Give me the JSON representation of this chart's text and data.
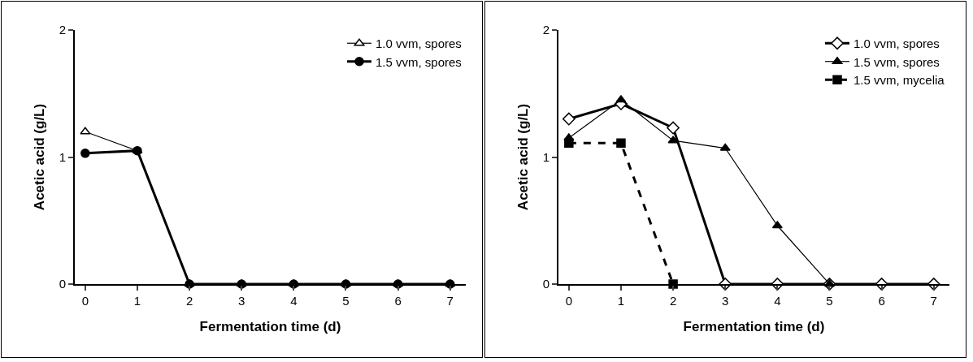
{
  "chart_data": [
    {
      "type": "line",
      "xlabel": "Fermentation time (d)",
      "ylabel": "Acetic acid (g/L)",
      "x": [
        0,
        1,
        2,
        3,
        4,
        5,
        6,
        7
      ],
      "xlim": [
        -0.2,
        7.3
      ],
      "xticks": [
        0,
        1,
        2,
        3,
        4,
        5,
        6,
        7
      ],
      "ylim": [
        0,
        2
      ],
      "yticks": [
        0,
        1,
        2
      ],
      "grid": false,
      "legend": "top right",
      "series": [
        {
          "name": "1.0 vvm, spores",
          "color": "#000000",
          "marker": "triangle",
          "line_style": "solid",
          "values": [
            1.2,
            1.05,
            0,
            0,
            0,
            0,
            0,
            0
          ]
        },
        {
          "name": "1.5 vvm, spores",
          "color": "#000000",
          "marker": "circle",
          "line_style": "solid",
          "values": [
            1.03,
            1.05,
            0,
            0,
            0,
            0,
            0,
            0
          ]
        }
      ]
    },
    {
      "type": "line",
      "xlabel": "Fermentation time (d)",
      "ylabel": "Acetic acid (g/L)",
      "x": [
        0,
        1,
        2,
        3,
        4,
        5,
        6,
        7
      ],
      "xlim": [
        -0.2,
        7.3
      ],
      "xticks": [
        0,
        1,
        2,
        3,
        4,
        5,
        6,
        7
      ],
      "ylim": [
        0,
        2
      ],
      "yticks": [
        0,
        1,
        2
      ],
      "grid": false,
      "legend": "top right",
      "series": [
        {
          "name": "1.0 vvm, spores",
          "color": "#000000",
          "marker": "diamond",
          "line_style": "solid",
          "values": [
            1.3,
            1.42,
            1.23,
            0,
            0,
            0,
            0,
            0
          ]
        },
        {
          "name": "1.5 vvm, spores",
          "color": "#000000",
          "marker": "triangle",
          "line_style": "solid",
          "values": [
            1.15,
            1.45,
            1.13,
            1.07,
            0.46,
            0,
            null,
            null
          ]
        },
        {
          "name": "1.5 vvm, mycelia",
          "color": "#000000",
          "marker": "square",
          "line_style": "dashed",
          "values": [
            1.11,
            1.11,
            0,
            null,
            null,
            null,
            null,
            null
          ]
        }
      ]
    }
  ]
}
